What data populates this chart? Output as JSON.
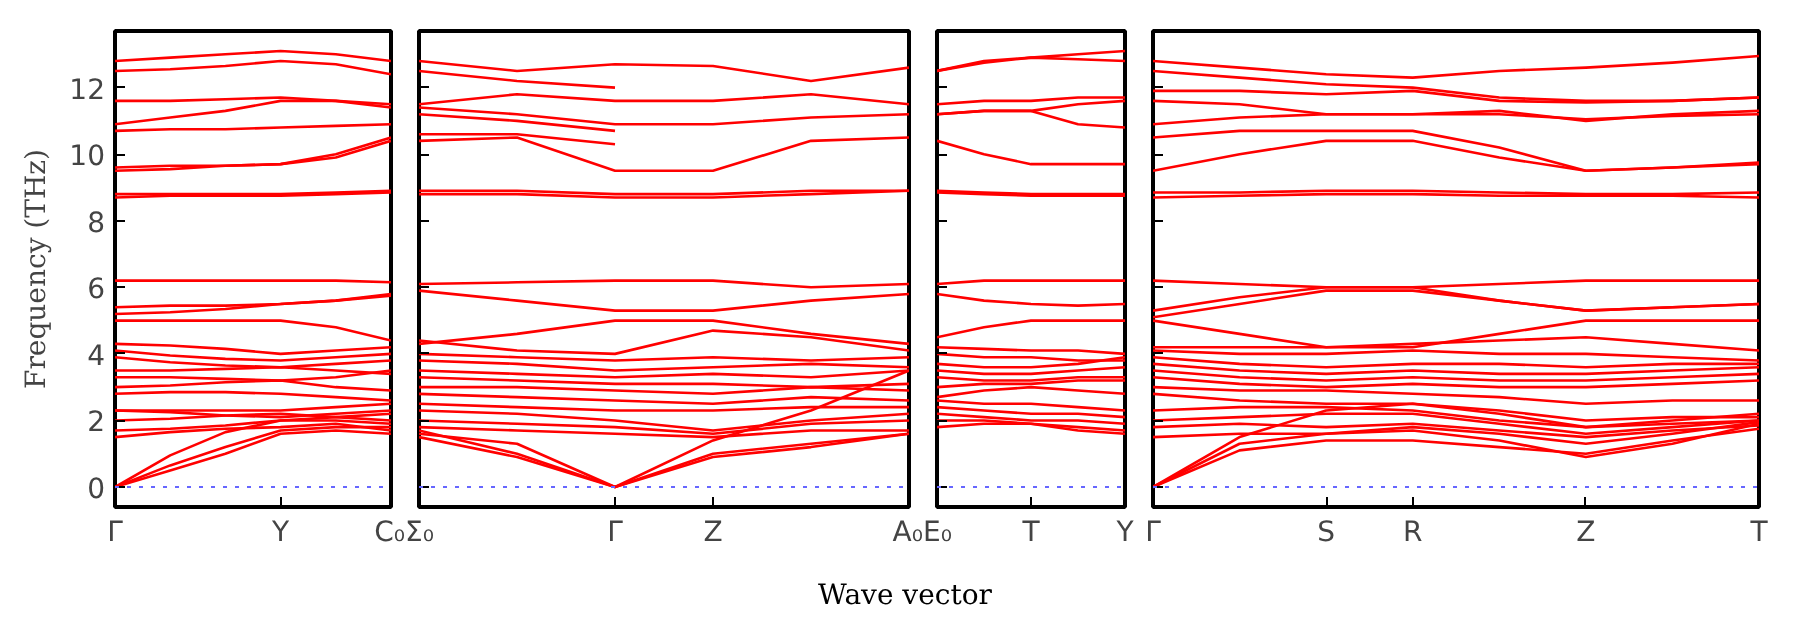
{
  "chart_data": [
    {
      "type": "line",
      "ylabel": "Frequency (THz)",
      "categories": [
        "Γ",
        null,
        null,
        "Y",
        null,
        "C₀"
      ],
      "ylim": [
        -0.6,
        13.7
      ],
      "yticks": [
        0,
        2,
        4,
        6,
        8,
        10,
        12
      ],
      "grid": false,
      "line_style": "solid",
      "tick_labels": true,
      "ref_lines": [
        {
          "axis": "y",
          "value": 0,
          "color": "#6666ff",
          "line_style": "dotted"
        }
      ],
      "series": [
        {
          "color": "#ff0000",
          "values": [
            12.8,
            12.9,
            13.0,
            13.1,
            13.0,
            12.8
          ]
        },
        {
          "color": "#ff0000",
          "values": [
            12.5,
            12.55,
            12.65,
            12.8,
            12.7,
            12.4
          ]
        },
        {
          "color": "#ff0000",
          "values": [
            11.6,
            11.6,
            11.65,
            11.7,
            11.6,
            11.4
          ]
        },
        {
          "color": "#ff0000",
          "values": [
            10.9,
            11.1,
            11.3,
            11.6,
            11.6,
            11.5
          ]
        },
        {
          "color": "#ff0000",
          "values": [
            10.7,
            10.75,
            10.75,
            10.8,
            10.85,
            10.9
          ]
        },
        {
          "color": "#ff0000",
          "values": [
            9.6,
            9.65,
            9.65,
            9.7,
            10.0,
            10.5
          ]
        },
        {
          "color": "#ff0000",
          "values": [
            9.5,
            9.55,
            9.65,
            9.7,
            9.9,
            10.4
          ]
        },
        {
          "color": "#ff0000",
          "values": [
            8.8,
            8.8,
            8.8,
            8.8,
            8.85,
            8.9
          ]
        },
        {
          "color": "#ff0000",
          "values": [
            8.7,
            8.75,
            8.75,
            8.75,
            8.8,
            8.85
          ]
        },
        {
          "color": "#ff0000",
          "values": [
            6.2,
            6.2,
            6.2,
            6.2,
            6.2,
            6.15
          ]
        },
        {
          "color": "#ff0000",
          "values": [
            5.4,
            5.45,
            5.45,
            5.5,
            5.6,
            5.8
          ]
        },
        {
          "color": "#ff0000",
          "values": [
            5.2,
            5.25,
            5.35,
            5.5,
            5.6,
            5.75
          ]
        },
        {
          "color": "#ff0000",
          "values": [
            5.0,
            5.0,
            5.0,
            5.0,
            4.8,
            4.4
          ]
        },
        {
          "color": "#ff0000",
          "values": [
            4.3,
            4.25,
            4.15,
            4.0,
            4.1,
            4.2
          ]
        },
        {
          "color": "#ff0000",
          "values": [
            4.1,
            3.95,
            3.85,
            3.8,
            3.9,
            4.0
          ]
        },
        {
          "color": "#ff0000",
          "values": [
            3.9,
            3.75,
            3.65,
            3.6,
            3.7,
            3.8
          ]
        },
        {
          "color": "#ff0000",
          "values": [
            3.5,
            3.5,
            3.55,
            3.6,
            3.5,
            3.4
          ]
        },
        {
          "color": "#ff0000",
          "values": [
            3.3,
            3.3,
            3.25,
            3.2,
            3.3,
            3.5
          ]
        },
        {
          "color": "#ff0000",
          "values": [
            3.0,
            3.05,
            3.15,
            3.2,
            3.0,
            2.9
          ]
        },
        {
          "color": "#ff0000",
          "values": [
            2.8,
            2.85,
            2.85,
            2.8,
            2.7,
            2.6
          ]
        },
        {
          "color": "#ff0000",
          "values": [
            2.3,
            2.3,
            2.3,
            2.3,
            2.4,
            2.5
          ]
        },
        {
          "color": "#ff0000",
          "values": [
            2.3,
            2.25,
            2.15,
            2.1,
            2.2,
            2.3
          ]
        },
        {
          "color": "#ff0000",
          "values": [
            2.0,
            2.05,
            2.15,
            2.2,
            2.1,
            2.0
          ]
        },
        {
          "color": "#ff0000",
          "values": [
            1.7,
            1.75,
            1.85,
            2.0,
            2.0,
            1.9
          ]
        },
        {
          "color": "#ff0000",
          "values": [
            1.5,
            1.65,
            1.75,
            1.8,
            1.9,
            1.7
          ]
        },
        {
          "color": "#ff0000",
          "values": [
            0,
            0.95,
            1.65,
            2.0,
            2.1,
            2.2
          ]
        },
        {
          "color": "#ff0000",
          "values": [
            0,
            0.65,
            1.2,
            1.7,
            1.8,
            1.8
          ]
        },
        {
          "color": "#ff0000",
          "values": [
            0,
            0.5,
            1.0,
            1.6,
            1.7,
            1.6
          ]
        }
      ]
    },
    {
      "type": "line",
      "xlabel": "Wave vector",
      "categories": [
        "Σ₀",
        null,
        "Γ",
        "Z",
        null,
        "A₀"
      ],
      "ylim": [
        -0.6,
        13.7
      ],
      "yticks": [
        0,
        2,
        4,
        6,
        8,
        10,
        12
      ],
      "grid": false,
      "line_style": "solid",
      "tick_labels": "x",
      "ref_lines": [
        {
          "axis": "y",
          "value": 0,
          "color": "#6666ff",
          "line_style": "dotted"
        }
      ],
      "series": [
        {
          "color": "#ff0000",
          "values": [
            12.8,
            12.5,
            12.7,
            12.65,
            12.2,
            12.6
          ]
        },
        {
          "color": "#ff0000",
          "values": [
            12.5,
            12.2,
            12.0,
            null,
            null,
            null
          ]
        },
        {
          "color": "#ff0000",
          "values": [
            11.5,
            11.8,
            11.6,
            11.6,
            11.8,
            11.5
          ]
        },
        {
          "color": "#ff0000",
          "values": [
            11.4,
            11.2,
            10.9,
            10.9,
            11.1,
            11.2
          ]
        },
        {
          "color": "#ff0000",
          "values": [
            11.2,
            11.0,
            10.7,
            null,
            null,
            null
          ]
        },
        {
          "color": "#ff0000",
          "values": [
            10.6,
            10.6,
            10.3,
            null,
            null,
            null
          ]
        },
        {
          "color": "#ff0000",
          "values": [
            10.4,
            10.5,
            9.5,
            9.5,
            10.4,
            10.5
          ]
        },
        {
          "color": "#ff0000",
          "values": [
            8.9,
            8.9,
            8.8,
            8.8,
            8.9,
            8.9
          ]
        },
        {
          "color": "#ff0000",
          "values": [
            8.8,
            8.8,
            8.7,
            8.7,
            8.8,
            8.9
          ]
        },
        {
          "color": "#ff0000",
          "values": [
            6.1,
            6.15,
            6.2,
            6.2,
            6.0,
            6.1
          ]
        },
        {
          "color": "#ff0000",
          "values": [
            5.9,
            5.6,
            5.3,
            5.3,
            5.6,
            5.8
          ]
        },
        {
          "color": "#ff0000",
          "values": [
            4.3,
            4.6,
            5.0,
            5.0,
            4.6,
            4.3
          ]
        },
        {
          "color": "#ff0000",
          "values": [
            4.4,
            4.1,
            4.0,
            4.7,
            4.5,
            4.1
          ]
        },
        {
          "color": "#ff0000",
          "values": [
            4.0,
            3.9,
            3.8,
            3.9,
            3.8,
            3.9
          ]
        },
        {
          "color": "#ff0000",
          "values": [
            3.8,
            3.7,
            3.5,
            3.6,
            3.7,
            3.6
          ]
        },
        {
          "color": "#ff0000",
          "values": [
            3.5,
            3.4,
            3.3,
            3.4,
            3.3,
            3.5
          ]
        },
        {
          "color": "#ff0000",
          "values": [
            3.3,
            3.2,
            3.1,
            3.1,
            3.0,
            3.1
          ]
        },
        {
          "color": "#ff0000",
          "values": [
            3.0,
            3.0,
            2.9,
            2.8,
            3.0,
            2.9
          ]
        },
        {
          "color": "#ff0000",
          "values": [
            2.8,
            2.7,
            2.6,
            2.5,
            2.7,
            2.6
          ]
        },
        {
          "color": "#ff0000",
          "values": [
            2.5,
            2.4,
            2.3,
            2.3,
            2.4,
            2.4
          ]
        },
        {
          "color": "#ff0000",
          "values": [
            2.3,
            2.2,
            2.0,
            1.7,
            2.0,
            2.2
          ]
        },
        {
          "color": "#ff0000",
          "values": [
            2.0,
            1.9,
            1.8,
            1.6,
            1.9,
            2.0
          ]
        },
        {
          "color": "#ff0000",
          "values": [
            1.8,
            1.7,
            1.6,
            1.5,
            1.7,
            1.7
          ]
        },
        {
          "color": "#ff0000",
          "values": [
            1.5,
            0.9,
            0,
            1.0,
            1.3,
            1.6
          ]
        },
        {
          "color": "#ff0000",
          "values": [
            1.7,
            1.0,
            0,
            0.9,
            1.2,
            1.6
          ]
        },
        {
          "color": "#ff0000",
          "values": [
            1.6,
            1.3,
            0,
            1.4,
            2.3,
            3.5
          ]
        }
      ]
    },
    {
      "type": "line",
      "categories": [
        "E₀",
        null,
        "T",
        null,
        "Y"
      ],
      "ylim": [
        -0.6,
        13.7
      ],
      "yticks": [
        0,
        2,
        4,
        6,
        8,
        10,
        12
      ],
      "grid": false,
      "line_style": "solid",
      "tick_labels": "x",
      "ref_lines": [
        {
          "axis": "y",
          "value": 0,
          "color": "#6666ff",
          "line_style": "dotted"
        }
      ],
      "series": [
        {
          "color": "#ff0000",
          "values": [
            12.5,
            12.8,
            12.9,
            13.0,
            13.1
          ]
        },
        {
          "color": "#ff0000",
          "values": [
            12.5,
            12.75,
            12.9,
            12.85,
            12.8
          ]
        },
        {
          "color": "#ff0000",
          "values": [
            11.5,
            11.6,
            11.6,
            11.7,
            11.7
          ]
        },
        {
          "color": "#ff0000",
          "values": [
            11.2,
            11.3,
            11.3,
            11.5,
            11.6
          ]
        },
        {
          "color": "#ff0000",
          "values": [
            11.2,
            11.3,
            11.3,
            10.9,
            10.8
          ]
        },
        {
          "color": "#ff0000",
          "values": [
            10.4,
            10.0,
            9.7,
            9.7,
            9.7
          ]
        },
        {
          "color": "#ff0000",
          "values": [
            8.9,
            8.85,
            8.8,
            8.8,
            8.8
          ]
        },
        {
          "color": "#ff0000",
          "values": [
            8.85,
            8.8,
            8.75,
            8.75,
            8.75
          ]
        },
        {
          "color": "#ff0000",
          "values": [
            6.1,
            6.2,
            6.2,
            6.2,
            6.2
          ]
        },
        {
          "color": "#ff0000",
          "values": [
            5.8,
            5.6,
            5.5,
            5.45,
            5.5
          ]
        },
        {
          "color": "#ff0000",
          "values": [
            4.5,
            4.8,
            5.0,
            5.0,
            5.0
          ]
        },
        {
          "color": "#ff0000",
          "values": [
            4.2,
            4.15,
            4.1,
            4.1,
            4.0
          ]
        },
        {
          "color": "#ff0000",
          "values": [
            4.0,
            3.9,
            3.9,
            3.8,
            3.8
          ]
        },
        {
          "color": "#ff0000",
          "values": [
            3.7,
            3.6,
            3.6,
            3.7,
            3.9
          ]
        },
        {
          "color": "#ff0000",
          "values": [
            3.5,
            3.4,
            3.4,
            3.5,
            3.6
          ]
        },
        {
          "color": "#ff0000",
          "values": [
            3.3,
            3.2,
            3.2,
            3.3,
            3.3
          ]
        },
        {
          "color": "#ff0000",
          "values": [
            3.0,
            3.1,
            3.1,
            3.2,
            3.2
          ]
        },
        {
          "color": "#ff0000",
          "values": [
            2.7,
            2.9,
            3.0,
            2.9,
            2.8
          ]
        },
        {
          "color": "#ff0000",
          "values": [
            2.6,
            2.5,
            2.5,
            2.4,
            2.3
          ]
        },
        {
          "color": "#ff0000",
          "values": [
            2.4,
            2.3,
            2.2,
            2.2,
            2.1
          ]
        },
        {
          "color": "#ff0000",
          "values": [
            2.2,
            2.1,
            2.0,
            2.0,
            1.9
          ]
        },
        {
          "color": "#ff0000",
          "values": [
            2.0,
            2.0,
            1.9,
            1.8,
            1.7
          ]
        },
        {
          "color": "#ff0000",
          "values": [
            1.8,
            1.9,
            1.9,
            1.7,
            1.6
          ]
        }
      ]
    },
    {
      "type": "line",
      "categories": [
        "Γ",
        null,
        "S",
        "R",
        null,
        "Z",
        null,
        "T"
      ],
      "ylim": [
        -0.6,
        13.7
      ],
      "yticks": [
        0,
        2,
        4,
        6,
        8,
        10,
        12
      ],
      "grid": false,
      "line_style": "solid",
      "tick_labels": "x",
      "ref_lines": [
        {
          "axis": "y",
          "value": 0,
          "color": "#6666ff",
          "line_style": "dotted"
        }
      ],
      "series": [
        {
          "color": "#ff0000",
          "values": [
            12.8,
            12.6,
            12.4,
            12.3,
            12.5,
            12.6,
            12.75,
            12.95
          ]
        },
        {
          "color": "#ff0000",
          "values": [
            12.5,
            12.3,
            12.1,
            12.0,
            11.7,
            11.6,
            11.6,
            11.7
          ]
        },
        {
          "color": "#ff0000",
          "values": [
            11.9,
            11.9,
            11.8,
            11.9,
            11.6,
            11.55,
            11.6,
            11.7
          ]
        },
        {
          "color": "#ff0000",
          "values": [
            11.6,
            11.5,
            11.2,
            11.2,
            11.3,
            11.0,
            11.2,
            11.3
          ]
        },
        {
          "color": "#ff0000",
          "values": [
            10.9,
            11.1,
            11.2,
            11.2,
            11.2,
            11.05,
            11.15,
            11.2
          ]
        },
        {
          "color": "#ff0000",
          "values": [
            10.5,
            10.7,
            10.7,
            10.7,
            10.2,
            9.5,
            9.6,
            9.7
          ]
        },
        {
          "color": "#ff0000",
          "values": [
            9.5,
            10.0,
            10.4,
            10.4,
            9.9,
            9.5,
            9.6,
            9.75
          ]
        },
        {
          "color": "#ff0000",
          "values": [
            8.85,
            8.85,
            8.9,
            8.9,
            8.85,
            8.8,
            8.8,
            8.85
          ]
        },
        {
          "color": "#ff0000",
          "values": [
            8.7,
            8.75,
            8.8,
            8.8,
            8.75,
            8.75,
            8.75,
            8.7
          ]
        },
        {
          "color": "#ff0000",
          "values": [
            6.2,
            6.1,
            6.0,
            6.0,
            6.1,
            6.2,
            6.2,
            6.2
          ]
        },
        {
          "color": "#ff0000",
          "values": [
            5.3,
            5.7,
            6.0,
            6.0,
            5.6,
            5.3,
            5.4,
            5.5
          ]
        },
        {
          "color": "#ff0000",
          "values": [
            5.1,
            5.5,
            5.9,
            5.9,
            5.6,
            5.3,
            5.4,
            5.5
          ]
        },
        {
          "color": "#ff0000",
          "values": [
            5.0,
            4.6,
            4.2,
            4.2,
            4.6,
            5.0,
            5.0,
            5.0
          ]
        },
        {
          "color": "#ff0000",
          "values": [
            4.2,
            4.2,
            4.2,
            4.3,
            4.4,
            4.5,
            4.3,
            4.1
          ]
        },
        {
          "color": "#ff0000",
          "values": [
            4.1,
            4.0,
            4.0,
            4.1,
            4.0,
            4.0,
            3.9,
            3.8
          ]
        },
        {
          "color": "#ff0000",
          "values": [
            3.9,
            3.7,
            3.6,
            3.7,
            3.7,
            3.6,
            3.7,
            3.7
          ]
        },
        {
          "color": "#ff0000",
          "values": [
            3.7,
            3.5,
            3.4,
            3.5,
            3.4,
            3.4,
            3.5,
            3.6
          ]
        },
        {
          "color": "#ff0000",
          "values": [
            3.5,
            3.3,
            3.2,
            3.3,
            3.2,
            3.2,
            3.3,
            3.4
          ]
        },
        {
          "color": "#ff0000",
          "values": [
            3.3,
            3.1,
            3.0,
            3.1,
            3.0,
            3.0,
            3.1,
            3.2
          ]
        },
        {
          "color": "#ff0000",
          "values": [
            3.0,
            2.9,
            2.9,
            2.8,
            2.7,
            2.5,
            2.6,
            2.6
          ]
        },
        {
          "color": "#ff0000",
          "values": [
            2.8,
            2.6,
            2.5,
            2.5,
            2.3,
            2.0,
            2.1,
            2.1
          ]
        },
        {
          "color": "#ff0000",
          "values": [
            2.3,
            2.4,
            2.4,
            2.3,
            2.0,
            1.8,
            1.9,
            2.0
          ]
        },
        {
          "color": "#ff0000",
          "values": [
            2.0,
            2.1,
            2.2,
            2.2,
            1.9,
            1.6,
            1.8,
            2.0
          ]
        },
        {
          "color": "#ff0000",
          "values": [
            1.8,
            1.9,
            1.8,
            1.9,
            1.7,
            1.5,
            1.7,
            1.85
          ]
        },
        {
          "color": "#ff0000",
          "values": [
            1.5,
            1.6,
            1.6,
            1.7,
            1.4,
            0.9,
            1.3,
            1.9
          ]
        },
        {
          "color": "#ff0000",
          "values": [
            0,
            1.1,
            1.4,
            1.4,
            1.2,
            1.0,
            1.4,
            1.75
          ]
        },
        {
          "color": "#ff0000",
          "values": [
            0,
            1.3,
            1.6,
            1.8,
            1.6,
            1.3,
            1.6,
            1.95
          ]
        },
        {
          "color": "#ff0000",
          "values": [
            0,
            1.5,
            2.3,
            2.5,
            2.2,
            1.8,
            2.0,
            2.2
          ]
        }
      ]
    }
  ]
}
